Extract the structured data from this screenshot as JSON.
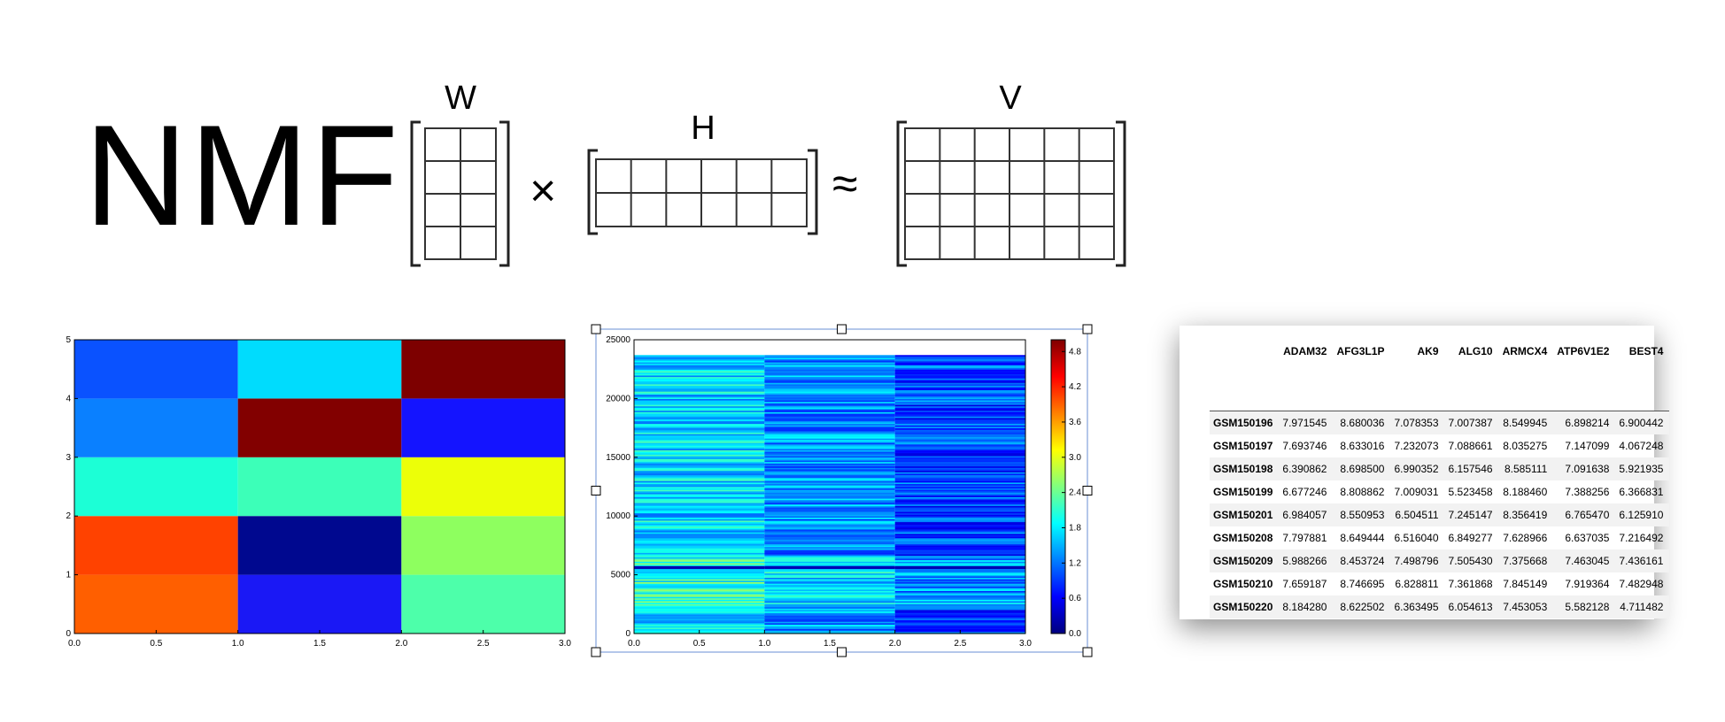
{
  "diagram": {
    "title": "NMF",
    "labels": {
      "w": "W",
      "h": "H",
      "v": "V"
    },
    "operators": {
      "times": "×",
      "approx": "≈"
    },
    "matrices": {
      "w": {
        "rows": 4,
        "cols": 2
      },
      "h": {
        "rows": 2,
        "cols": 6
      },
      "v": {
        "rows": 4,
        "cols": 6
      }
    }
  },
  "chart_data": [
    {
      "type": "heatmap",
      "x_ticks": [
        "0.0",
        "0.5",
        "1.0",
        "1.5",
        "2.0",
        "2.5",
        "3.0"
      ],
      "y_ticks": [
        "0",
        "1",
        "2",
        "3",
        "4",
        "5"
      ],
      "xlim": [
        0,
        3
      ],
      "ylim": [
        0,
        5
      ],
      "colormap": "jet",
      "cells": [
        [
          "#ff5f00",
          "#1a18f5",
          "#4dffaa"
        ],
        [
          "#ff4200",
          "#00088f",
          "#8eff5f"
        ],
        [
          "#1cffd6",
          "#3cffb8",
          "#ecff08"
        ],
        [
          "#0a80ff",
          "#820000",
          "#1414ff"
        ],
        [
          "#0a52ff",
          "#00dcfd",
          "#7d0000"
        ]
      ]
    },
    {
      "type": "heatmap",
      "x_ticks": [
        "0.0",
        "0.5",
        "1.0",
        "1.5",
        "2.0",
        "2.5",
        "3.0"
      ],
      "y_ticks": [
        "0",
        "5000",
        "10000",
        "15000",
        "20000",
        "25000"
      ],
      "xlim": [
        0,
        3
      ],
      "ylim": [
        0,
        25000
      ],
      "data_rows": 23700,
      "colormap": "jet",
      "colorbar_ticks": [
        "0.0",
        "0.6",
        "1.2",
        "1.8",
        "2.4",
        "3.0",
        "3.6",
        "4.2",
        "4.8"
      ],
      "colorbar_range": [
        0,
        5.0
      ],
      "selected": true
    },
    {
      "type": "table",
      "columns": [
        "ADAM32",
        "AFG3L1P",
        "AK9",
        "ALG10",
        "ARMCX4",
        "ATP6V1E2",
        "BEST4"
      ],
      "rows": [
        {
          "id": "GSM150196",
          "values": [
            "7.971545",
            "8.680036",
            "7.078353",
            "7.007387",
            "8.549945",
            "6.898214",
            "6.900442"
          ]
        },
        {
          "id": "GSM150197",
          "values": [
            "7.693746",
            "8.633016",
            "7.232073",
            "7.088661",
            "8.035275",
            "7.147099",
            "4.067248"
          ]
        },
        {
          "id": "GSM150198",
          "values": [
            "6.390862",
            "8.698500",
            "6.990352",
            "6.157546",
            "8.585111",
            "7.091638",
            "5.921935"
          ]
        },
        {
          "id": "GSM150199",
          "values": [
            "6.677246",
            "8.808862",
            "7.009031",
            "5.523458",
            "8.188460",
            "7.388256",
            "6.366831"
          ]
        },
        {
          "id": "GSM150201",
          "values": [
            "6.984057",
            "8.550953",
            "6.504511",
            "7.245147",
            "8.356419",
            "6.765470",
            "6.125910"
          ]
        },
        {
          "id": "GSM150208",
          "values": [
            "7.797881",
            "8.649444",
            "6.516040",
            "6.849277",
            "7.628966",
            "6.637035",
            "7.216492"
          ]
        },
        {
          "id": "GSM150209",
          "values": [
            "5.988266",
            "8.453724",
            "7.498796",
            "7.505430",
            "7.375668",
            "7.463045",
            "7.436161"
          ]
        },
        {
          "id": "GSM150210",
          "values": [
            "7.659187",
            "8.746695",
            "6.828811",
            "7.361868",
            "7.845149",
            "7.919364",
            "7.482948"
          ]
        },
        {
          "id": "GSM150220",
          "values": [
            "8.184280",
            "8.622502",
            "6.363495",
            "6.054613",
            "7.453053",
            "5.582128",
            "4.711482"
          ]
        }
      ]
    }
  ]
}
